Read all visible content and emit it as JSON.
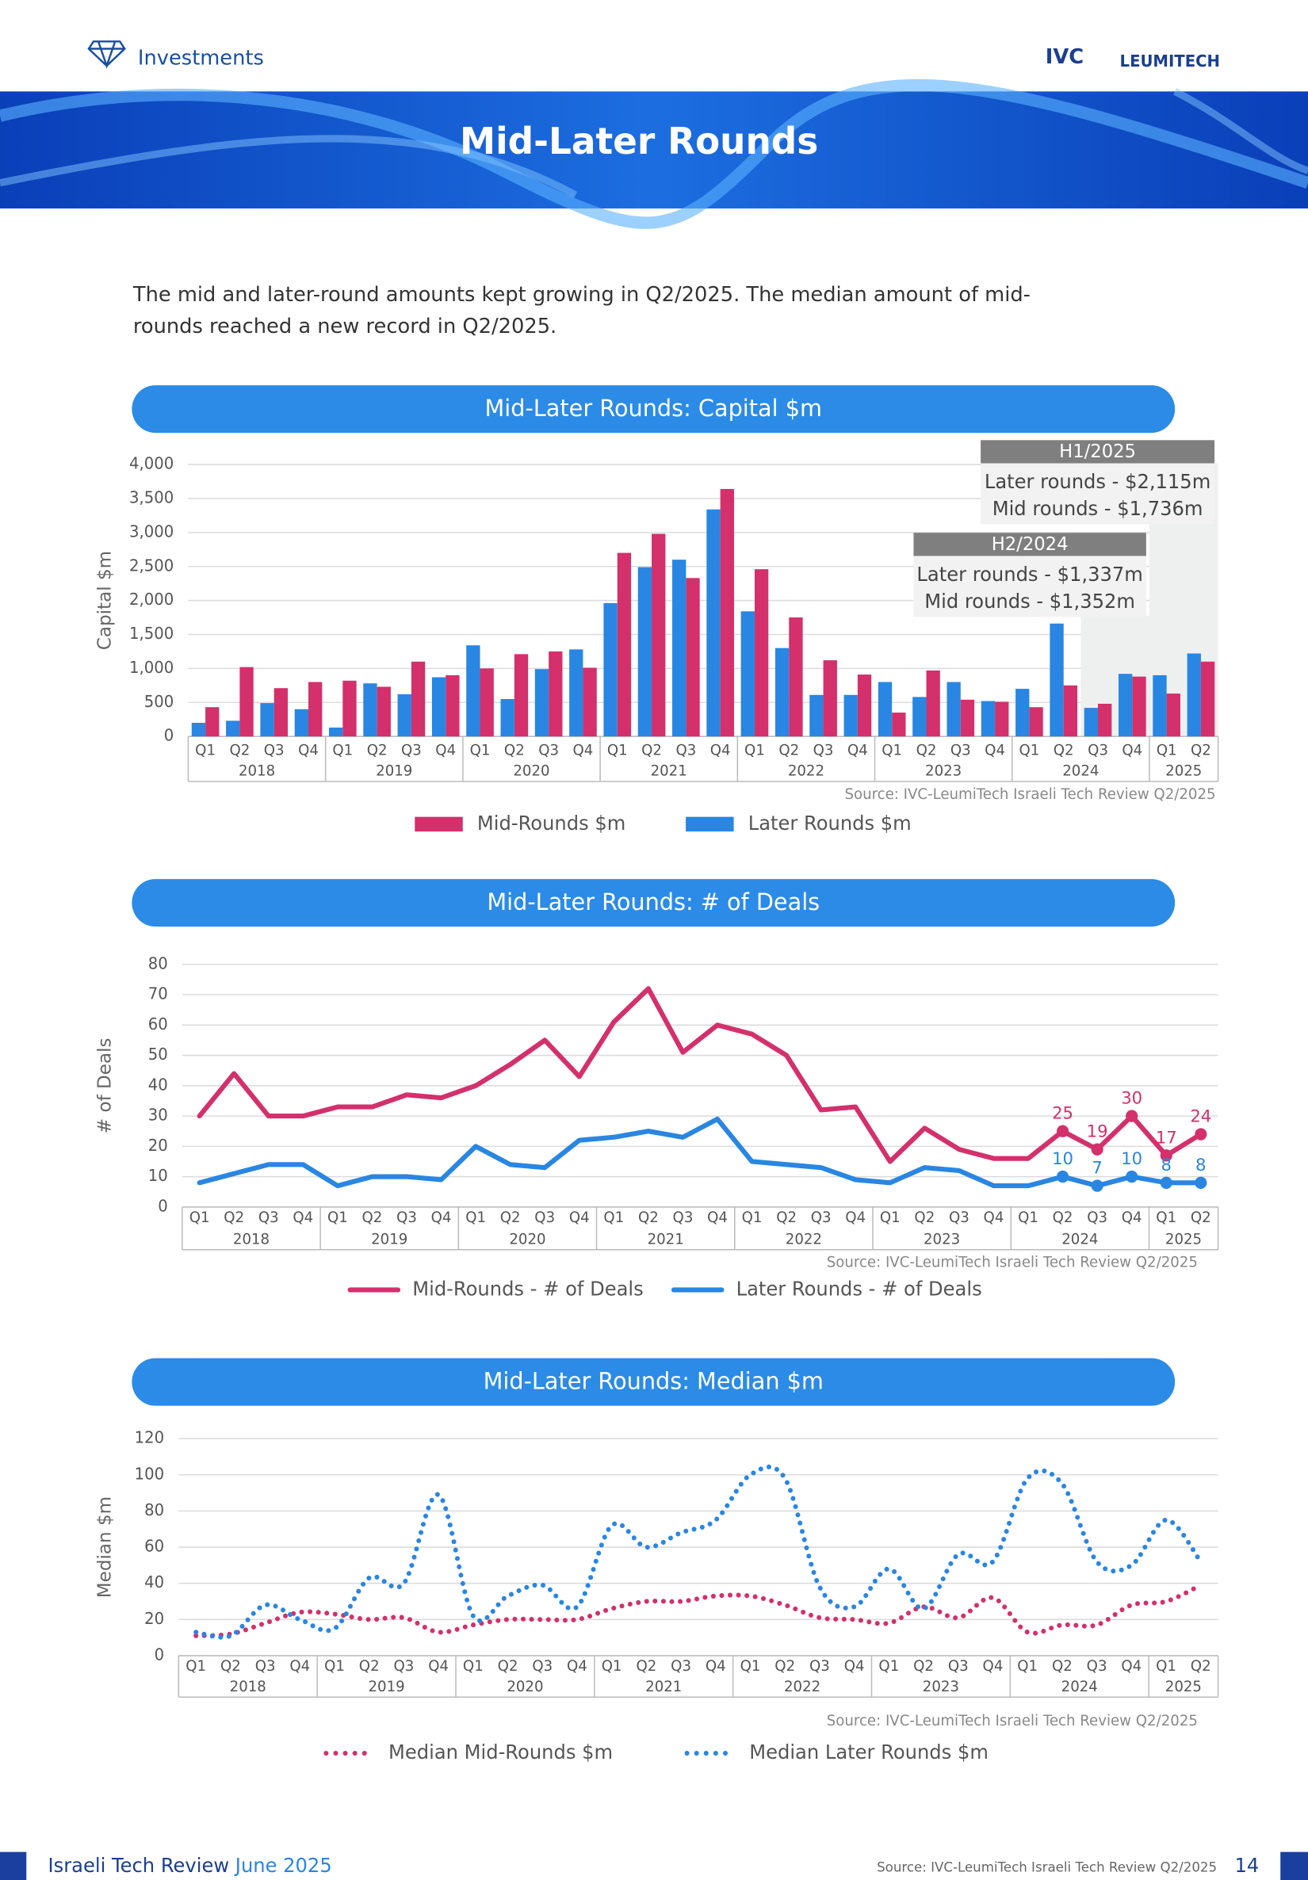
{
  "header": {
    "section": "Investments",
    "logos": [
      "IVC",
      "LEUMITECH"
    ],
    "title": "Mid-Later Rounds"
  },
  "intro": [
    "The mid and later-round amounts kept growing in Q2/2025. The median amount of mid-",
    "rounds reached a new record in Q2/2025."
  ],
  "footer": {
    "publication": "Israeli Tech Review",
    "edition": "June 2025",
    "source": "Source: IVC-LeumiTech Israeli Tech Review Q2/2025",
    "page": "14"
  },
  "chart_data": [
    {
      "type": "bar",
      "title": "Mid-Later Rounds: Capital $m",
      "y_label": "Capital $m",
      "source": "Source: IVC-LeumiTech Israeli Tech Review Q2/2025",
      "categories": [
        "Q1",
        "Q2",
        "Q3",
        "Q4",
        "Q1",
        "Q2",
        "Q3",
        "Q4",
        "Q1",
        "Q2",
        "Q3",
        "Q4",
        "Q1",
        "Q2",
        "Q3",
        "Q4",
        "Q1",
        "Q2",
        "Q3",
        "Q4",
        "Q1",
        "Q2",
        "Q3",
        "Q4",
        "Q1",
        "Q2",
        "Q3",
        "Q4",
        "Q1",
        "Q2"
      ],
      "years": [
        "2018",
        "2019",
        "2020",
        "2021",
        "2022",
        "2023",
        "2024",
        "2025"
      ],
      "series": [
        {
          "name": "Mid-Rounds $m",
          "color": "#d3306c",
          "values": [
            430,
            1020,
            710,
            800,
            820,
            730,
            1100,
            900,
            1000,
            1210,
            1250,
            1010,
            2700,
            2980,
            2330,
            3640,
            2460,
            1750,
            1120,
            910,
            350,
            970,
            540,
            510,
            430,
            750,
            480,
            880,
            630,
            1100
          ]
        },
        {
          "name": "Later Rounds $m",
          "color": "#2986e2",
          "values": [
            200,
            230,
            490,
            400,
            130,
            780,
            620,
            870,
            1340,
            550,
            990,
            1280,
            1960,
            2490,
            2600,
            3340,
            1840,
            1300,
            610,
            610,
            800,
            580,
            800,
            520,
            700,
            1660,
            420,
            920,
            900,
            1220
          ]
        }
      ],
      "ylim": [
        0,
        4000
      ],
      "yticks": [
        0,
        500,
        {
          "value": 1000,
          "label": "1,000"
        },
        {
          "value": 1500,
          "label": "1,500"
        },
        {
          "value": 2000,
          "label": "2,000"
        },
        {
          "value": 2500,
          "label": "2,500"
        },
        {
          "value": 3000,
          "label": "3,000"
        },
        {
          "value": 3500,
          "label": "3,500"
        },
        {
          "value": 4000,
          "label": "4,000"
        }
      ],
      "grid": true,
      "annotations": [
        {
          "title": "H1/2025",
          "lines": [
            "Later rounds - $2,115m",
            "Mid rounds - $1,736m"
          ]
        },
        {
          "title": "H2/2024",
          "lines": [
            "Later rounds - $1,337m",
            "Mid rounds - $1,352m"
          ]
        }
      ]
    },
    {
      "type": "line",
      "title": "Mid-Later Rounds: # of Deals",
      "y_label": "# of Deals",
      "source": "Source: IVC-LeumiTech Israeli Tech Review Q2/2025",
      "categories": [
        "Q1",
        "Q2",
        "Q3",
        "Q4",
        "Q1",
        "Q2",
        "Q3",
        "Q4",
        "Q1",
        "Q2",
        "Q3",
        "Q4",
        "Q1",
        "Q2",
        "Q3",
        "Q4",
        "Q1",
        "Q2",
        "Q3",
        "Q4",
        "Q1",
        "Q2",
        "Q3",
        "Q4",
        "Q1",
        "Q2",
        "Q3",
        "Q4",
        "Q1",
        "Q2"
      ],
      "years": [
        "2018",
        "2019",
        "2020",
        "2021",
        "2022",
        "2023",
        "2024",
        "2025"
      ],
      "series": [
        {
          "name": "Mid-Rounds - # of Deals",
          "color": "#d3306c",
          "values": [
            30,
            44,
            30,
            30,
            33,
            33,
            37,
            36,
            40,
            47,
            55,
            43,
            61,
            72,
            51,
            60,
            57,
            50,
            32,
            33,
            15,
            26,
            19,
            16,
            16,
            25,
            19,
            30,
            17,
            24
          ],
          "value_labels": [
            null,
            null,
            null,
            null,
            null,
            null,
            null,
            null,
            null,
            null,
            null,
            null,
            null,
            null,
            null,
            null,
            null,
            null,
            null,
            null,
            null,
            null,
            null,
            null,
            null,
            25,
            19,
            30,
            17,
            24
          ]
        },
        {
          "name": "Later Rounds - # of Deals",
          "color": "#2986e2",
          "values": [
            8,
            11,
            14,
            14,
            7,
            10,
            10,
            9,
            20,
            14,
            13,
            22,
            23,
            25,
            23,
            29,
            15,
            14,
            13,
            9,
            8,
            13,
            12,
            7,
            7,
            10,
            7,
            10,
            8,
            8
          ],
          "value_labels": [
            null,
            null,
            null,
            null,
            null,
            null,
            null,
            null,
            null,
            null,
            null,
            null,
            null,
            null,
            null,
            null,
            null,
            null,
            null,
            null,
            null,
            null,
            null,
            null,
            null,
            10,
            7,
            10,
            8,
            8
          ]
        }
      ],
      "ylim": [
        0,
        80
      ],
      "yticks": [
        0,
        10,
        20,
        30,
        40,
        50,
        60,
        70,
        80
      ],
      "grid": true
    },
    {
      "type": "dotted-line",
      "title": "Mid-Later Rounds: Median $m",
      "y_label": "Median $m",
      "source": "Source: IVC-LeumiTech Israeli Tech Review Q2/2025",
      "categories": [
        "Q1",
        "Q2",
        "Q3",
        "Q4",
        "Q1",
        "Q2",
        "Q3",
        "Q4",
        "Q1",
        "Q2",
        "Q3",
        "Q4",
        "Q1",
        "Q2",
        "Q3",
        "Q4",
        "Q1",
        "Q2",
        "Q3",
        "Q4",
        "Q1",
        "Q2",
        "Q3",
        "Q4",
        "Q1",
        "Q2",
        "Q3",
        "Q4",
        "Q1",
        "Q2"
      ],
      "years": [
        "2018",
        "2019",
        "2020",
        "2021",
        "2022",
        "2023",
        "2024",
        "2025"
      ],
      "series": [
        {
          "name": "Median Mid-Rounds $m",
          "color": "#d3306c",
          "values": [
            11,
            12,
            18,
            24,
            23,
            20,
            21,
            13,
            17,
            20,
            20,
            20,
            26,
            30,
            30,
            33,
            33,
            28,
            21,
            20,
            18,
            27,
            21,
            32,
            13,
            17,
            17,
            28,
            30,
            39
          ]
        },
        {
          "name": "Median Later Rounds $m",
          "color": "#2986e2",
          "values": [
            13,
            11,
            28,
            20,
            15,
            43,
            40,
            89,
            22,
            33,
            39,
            27,
            72,
            60,
            68,
            75,
            100,
            98,
            38,
            27,
            48,
            26,
            56,
            52,
            98,
            95,
            52,
            50,
            75,
            52
          ]
        }
      ],
      "ylim": [
        0,
        120
      ],
      "yticks": [
        0,
        20,
        40,
        60,
        80,
        100,
        120
      ],
      "grid": true
    }
  ]
}
